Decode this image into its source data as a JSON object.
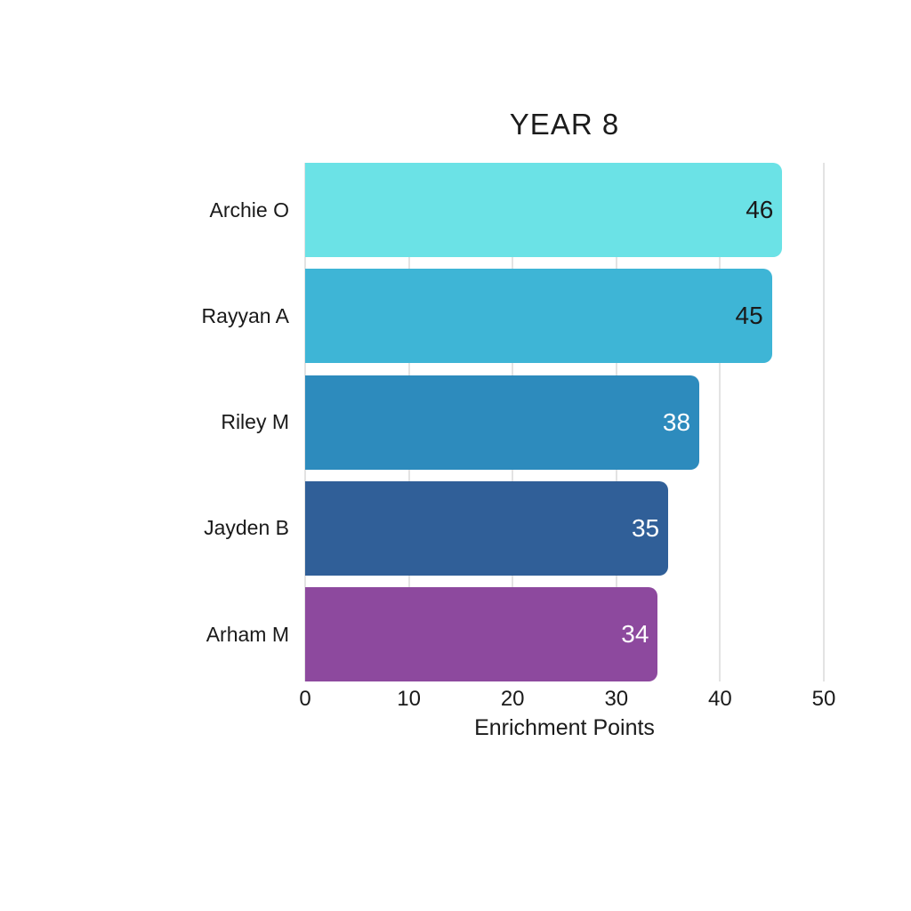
{
  "chart_data": {
    "type": "bar",
    "orientation": "horizontal",
    "title": "YEAR 8",
    "categories": [
      "Archie O",
      "Rayyan A",
      "Riley M",
      "Jayden B",
      "Arham M"
    ],
    "values": [
      46,
      45,
      38,
      35,
      34
    ],
    "bar_colors": [
      "#6BE2E6",
      "#3EB5D6",
      "#2D8BBD",
      "#305F98",
      "#8D499E"
    ],
    "value_label_colors": [
      "#1A1A1A",
      "#1A1A1A",
      "#FFFFFF",
      "#FFFFFF",
      "#FFFFFF"
    ],
    "xlabel": "Enrichment Points",
    "ylabel": "",
    "xlim": [
      0,
      50
    ],
    "xticks": [
      0,
      10,
      20,
      30,
      40,
      50
    ],
    "grid": "vertical",
    "gridline_color": "#E3E3E3",
    "background": "#FFFFFF",
    "text_color": "#1A1A1A",
    "legend": false
  }
}
